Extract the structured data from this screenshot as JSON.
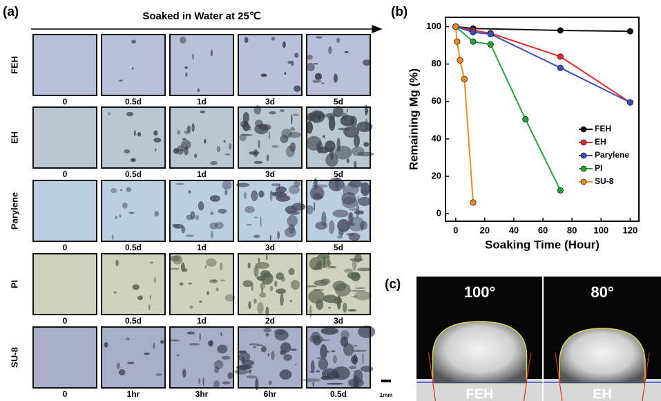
{
  "panel_a": {
    "label": "(a)",
    "header": "Soaked in Water at 25℃",
    "scale_label": "1mm",
    "rows": [
      {
        "name": "FEH",
        "times": [
          "0",
          "0.5d",
          "1d",
          "3d",
          "5d"
        ]
      },
      {
        "name": "EH",
        "times": [
          "0",
          "0.5d",
          "1d",
          "3d",
          "5d"
        ]
      },
      {
        "name": "Parylene",
        "times": [
          "0",
          "0.5d",
          "1d",
          "3d",
          "5d"
        ]
      },
      {
        "name": "PI",
        "times": [
          "0",
          "0.5d",
          "1d",
          "2d",
          "3d"
        ]
      },
      {
        "name": "SU-8",
        "times": [
          "0",
          "1hr",
          "3hr",
          "6hr",
          "0.5d"
        ]
      }
    ]
  },
  "chart_data": {
    "type": "line",
    "panel_label": "(b)",
    "x_label": "Soaking Time (Hour)",
    "y_label": "Remaining Mg (%)",
    "xlim": [
      -7,
      126
    ],
    "ylim": [
      -4,
      105
    ],
    "xticks": [
      0,
      20,
      40,
      60,
      80,
      100,
      120
    ],
    "yticks": [
      0,
      20,
      40,
      60,
      80,
      100
    ],
    "legend": "right",
    "series": [
      {
        "name": "FEH",
        "color": "#111111",
        "x": [
          0,
          12,
          72,
          120
        ],
        "values": [
          100,
          99,
          98,
          97.5
        ]
      },
      {
        "name": "EH",
        "color": "#e8282a",
        "x": [
          0,
          12,
          24,
          72,
          120
        ],
        "values": [
          100,
          98,
          96.5,
          84,
          59.5
        ]
      },
      {
        "name": "Parylene",
        "color": "#3c4bc4",
        "x": [
          0,
          12,
          24,
          72,
          120
        ],
        "values": [
          100,
          97,
          96,
          78,
          59.5
        ]
      },
      {
        "name": "PI",
        "color": "#23a53a",
        "x": [
          0,
          12,
          24,
          48,
          72
        ],
        "values": [
          100,
          92,
          90.5,
          50.5,
          12.5
        ]
      },
      {
        "name": "SU-8",
        "color": "#f28a1c",
        "x": [
          0,
          1,
          3,
          6,
          12
        ],
        "values": [
          100,
          92,
          82,
          72,
          6
        ]
      }
    ]
  },
  "panel_c": {
    "label": "(c)",
    "images": [
      {
        "angle": "100°",
        "name": "FEH"
      },
      {
        "angle": "80°",
        "name": "EH"
      }
    ]
  }
}
